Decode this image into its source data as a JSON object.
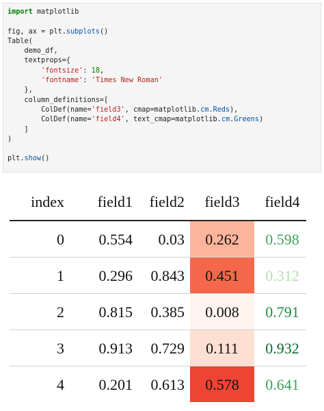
{
  "code_lines": [
    [
      "kw",
      "import",
      "",
      " matplotlib"
    ],
    [
      "",
      ""
    ],
    [
      "",
      "fig, ax = plt.",
      "fn",
      "subplots",
      "",
      "()"
    ],
    [
      "",
      "Table("
    ],
    [
      "",
      "    demo_df,"
    ],
    [
      "",
      "    textprops={"
    ],
    [
      "",
      "        ",
      "str",
      "'fontsize'",
      "",
      ": ",
      "num",
      "18",
      "",
      ","
    ],
    [
      "",
      "        ",
      "str",
      "'fontname'",
      "",
      ": ",
      "str",
      "'Times New Roman'"
    ],
    [
      "",
      "    },"
    ],
    [
      "",
      "    column_definitions=["
    ],
    [
      "",
      "        ColDef(name=",
      "str",
      "'field3'",
      "",
      ", cmap=matplotlib.",
      "fn",
      "cm",
      "",
      ".",
      "fn",
      "Reds",
      "",
      "),"
    ],
    [
      "",
      "        ColDef(name=",
      "str",
      "'field4'",
      "",
      ", text_cmap=matplotlib.",
      "fn",
      "cm",
      "",
      ".",
      "fn",
      "Greens",
      "",
      ")"
    ],
    [
      "",
      "    ]"
    ],
    [
      "",
      ")"
    ],
    [
      "",
      ""
    ],
    [
      "",
      "plt.",
      "fn",
      "show",
      "",
      "()"
    ]
  ],
  "table": {
    "headers": [
      "index",
      "field1",
      "field2",
      "field3",
      "field4"
    ],
    "rows": [
      {
        "index": "0",
        "field1": "0.554",
        "field2": "0.03",
        "field3": "0.262",
        "field4": "0.598"
      },
      {
        "index": "1",
        "field1": "0.296",
        "field2": "0.843",
        "field3": "0.451",
        "field4": "0.312"
      },
      {
        "index": "2",
        "field1": "0.815",
        "field2": "0.385",
        "field3": "0.008",
        "field4": "0.791"
      },
      {
        "index": "3",
        "field1": "0.913",
        "field2": "0.729",
        "field3": "0.111",
        "field4": "0.932"
      },
      {
        "index": "4",
        "field1": "0.201",
        "field2": "0.613",
        "field3": "0.578",
        "field4": "0.641"
      }
    ],
    "field3_bg": [
      "#fcb59a",
      "#f4674a",
      "#fff4ef",
      "#fee0d3",
      "#ee4434"
    ],
    "field4_color": [
      "#3fa559",
      "#b4dfae",
      "#1b8a44",
      "#0a6b30",
      "#36a055"
    ]
  }
}
